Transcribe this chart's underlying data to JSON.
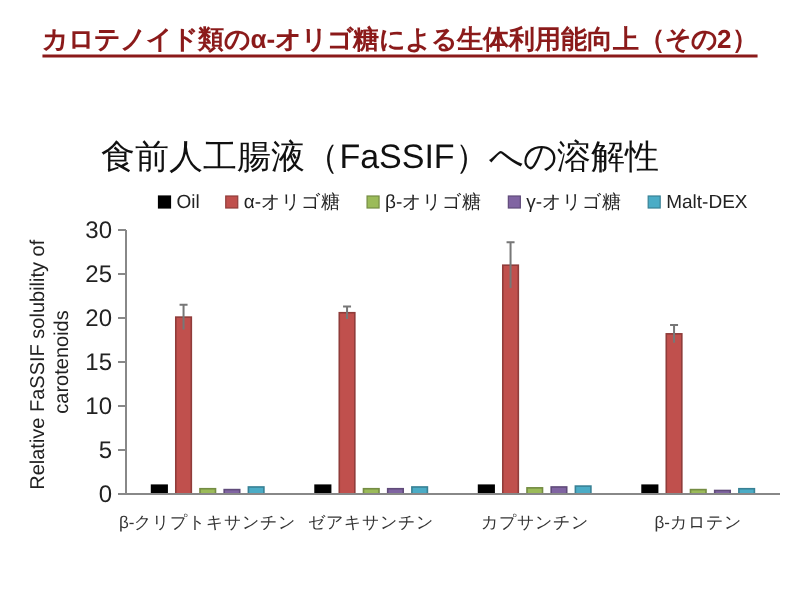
{
  "chart_data": {
    "type": "bar",
    "title": "カロテノイド類のα-オリゴ糖による生体利用能向上（その2）",
    "subtitle": "食前人工腸液（FaSSIF）への溶解性",
    "ylabel": "Relative FaSSIF solubility of carotenoids",
    "categories": [
      "β-クリプトキサンチン",
      "ゼアキサンチン",
      "カプサンチン",
      "β-カロテン"
    ],
    "series": [
      {
        "name": "Oil",
        "color": "#000000",
        "values": [
          1,
          1,
          1,
          1
        ]
      },
      {
        "name": "α-オリゴ糖",
        "color": "#c0504d",
        "values": [
          20.1,
          20.6,
          26.0,
          18.2
        ],
        "errors": [
          1.4,
          0.7,
          2.6,
          1.0
        ]
      },
      {
        "name": "β-オリゴ糖",
        "color": "#9bbb59",
        "values": [
          0.6,
          0.6,
          0.7,
          0.5
        ]
      },
      {
        "name": "γ-オリゴ糖",
        "color": "#8064a2",
        "values": [
          0.5,
          0.6,
          0.8,
          0.4
        ]
      },
      {
        "name": "Malt-DEX",
        "color": "#4bacc6",
        "values": [
          0.8,
          0.8,
          0.9,
          0.6
        ]
      }
    ],
    "ylim": [
      0,
      30
    ],
    "yticks": [
      0,
      5,
      10,
      15,
      20,
      25,
      30
    ],
    "legend": "top",
    "grid": false
  }
}
